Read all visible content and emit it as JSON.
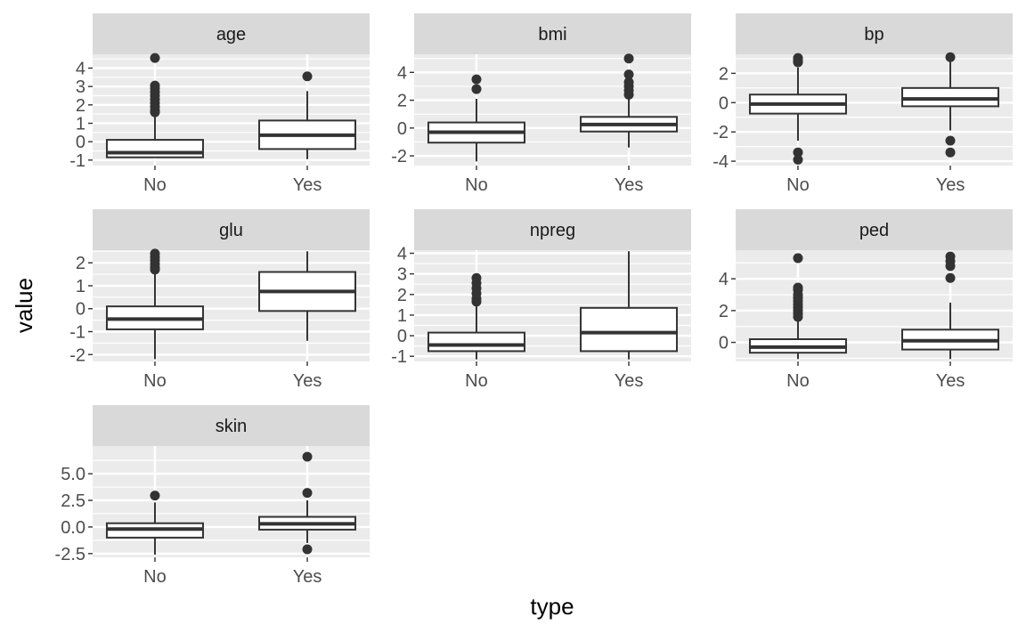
{
  "chart_data": {
    "type": "boxplot",
    "xlabel": "type",
    "ylabel": "value",
    "categories": [
      "No",
      "Yes"
    ],
    "colors": {
      "panel_background": "#ebebeb",
      "strip_background": "#d9d9d9",
      "grid": "#ffffff",
      "box_fill": "#ffffff",
      "box_line": "#333333"
    },
    "facets": [
      {
        "name": "age",
        "ylim": [
          -1.3,
          4.75
        ],
        "yticks": [
          "-1",
          "0",
          "1",
          "2",
          "3",
          "4"
        ],
        "boxes": [
          {
            "category": "No",
            "q1": -0.85,
            "median": -0.6,
            "q3": 0.1,
            "whisker_low": -0.85,
            "whisker_high": 1.5,
            "outliers": [
              1.6,
              1.7,
              1.9,
              2.1,
              2.3,
              2.5,
              2.7,
              2.9,
              3.05,
              4.55
            ]
          },
          {
            "category": "Yes",
            "q1": -0.4,
            "median": 0.35,
            "q3": 1.15,
            "whisker_low": -0.95,
            "whisker_high": 2.75,
            "outliers": [
              3.55
            ]
          }
        ]
      },
      {
        "name": "bmi",
        "ylim": [
          -2.7,
          5.3
        ],
        "yticks": [
          "-2",
          "0",
          "2",
          "4"
        ],
        "boxes": [
          {
            "category": "No",
            "q1": -1.05,
            "median": -0.3,
            "q3": 0.4,
            "whisker_low": -2.4,
            "whisker_high": 2.1,
            "outliers": [
              2.8,
              3.5
            ]
          },
          {
            "category": "Yes",
            "q1": -0.25,
            "median": 0.25,
            "q3": 0.8,
            "whisker_low": -1.4,
            "whisker_high": 2.2,
            "outliers": [
              2.4,
              2.7,
              3.0,
              3.3,
              3.85,
              5.0
            ]
          }
        ]
      },
      {
        "name": "bp",
        "ylim": [
          -4.3,
          3.3
        ],
        "yticks": [
          "-4",
          "-2",
          "0",
          "2"
        ],
        "boxes": [
          {
            "category": "No",
            "q1": -0.75,
            "median": -0.1,
            "q3": 0.55,
            "whisker_low": -2.6,
            "whisker_high": 2.4,
            "outliers": [
              -3.9,
              -3.4,
              2.75,
              2.9,
              3.05
            ]
          },
          {
            "category": "Yes",
            "q1": -0.25,
            "median": 0.25,
            "q3": 1.0,
            "whisker_low": -1.9,
            "whisker_high": 2.9,
            "outliers": [
              -3.4,
              -2.6,
              3.1
            ]
          }
        ]
      },
      {
        "name": "glu",
        "ylim": [
          -2.3,
          2.55
        ],
        "yticks": [
          "-2",
          "-1",
          "0",
          "1",
          "2"
        ],
        "boxes": [
          {
            "category": "No",
            "q1": -0.9,
            "median": -0.45,
            "q3": 0.1,
            "whisker_low": -2.2,
            "whisker_high": 1.6,
            "outliers": [
              1.7,
              1.8,
              1.95,
              2.1,
              2.25,
              2.4
            ]
          },
          {
            "category": "Yes",
            "q1": -0.1,
            "median": 0.75,
            "q3": 1.6,
            "whisker_low": -1.4,
            "whisker_high": 2.5,
            "outliers": []
          }
        ]
      },
      {
        "name": "npreg",
        "ylim": [
          -1.25,
          4.15
        ],
        "yticks": [
          "-1",
          "0",
          "1",
          "2",
          "3",
          "4"
        ],
        "boxes": [
          {
            "category": "No",
            "q1": -0.75,
            "median": -0.45,
            "q3": 0.15,
            "whisker_low": -1.15,
            "whisker_high": 1.5,
            "outliers": [
              1.65,
              1.8,
              2.05,
              2.3,
              2.55,
              2.8
            ]
          },
          {
            "category": "Yes",
            "q1": -0.75,
            "median": 0.15,
            "q3": 1.35,
            "whisker_low": -1.15,
            "whisker_high": 4.1,
            "outliers": []
          }
        ]
      },
      {
        "name": "ped",
        "ylim": [
          -1.2,
          5.8
        ],
        "yticks": [
          "0",
          "2",
          "4"
        ],
        "boxes": [
          {
            "category": "No",
            "q1": -0.65,
            "median": -0.3,
            "q3": 0.2,
            "whisker_low": -1.05,
            "whisker_high": 1.5,
            "outliers": [
              1.6,
              1.8,
              2.0,
              2.2,
              2.4,
              2.6,
              2.8,
              3.0,
              3.3,
              3.45,
              5.3
            ]
          },
          {
            "category": "Yes",
            "q1": -0.45,
            "median": 0.1,
            "q3": 0.8,
            "whisker_low": -1.05,
            "whisker_high": 2.5,
            "outliers": [
              4.05,
              4.8,
              5.1,
              5.4
            ]
          }
        ]
      },
      {
        "name": "skin",
        "ylim": [
          -2.85,
          7.6
        ],
        "yticks": [
          "-2.5",
          "0.0",
          "2.5",
          "5.0"
        ],
        "boxes": [
          {
            "category": "No",
            "q1": -1.0,
            "median": -0.2,
            "q3": 0.35,
            "whisker_low": -2.6,
            "whisker_high": 2.3,
            "outliers": [
              2.95
            ]
          },
          {
            "category": "Yes",
            "q1": -0.25,
            "median": 0.3,
            "q3": 0.95,
            "whisker_low": -1.5,
            "whisker_high": 2.5,
            "outliers": [
              -2.1,
              3.2,
              6.6
            ]
          }
        ]
      }
    ]
  }
}
